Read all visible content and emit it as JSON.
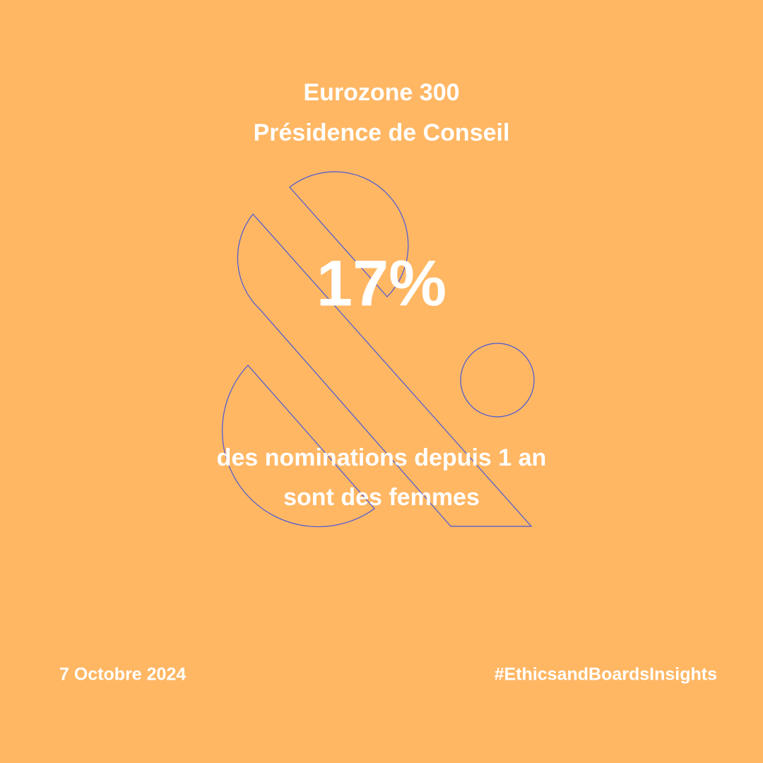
{
  "header": {
    "lines": [
      "Eurozone 300",
      "Présidence de Conseil"
    ]
  },
  "stat": {
    "value": "17%",
    "lines": [
      "des nominations depuis 1 an",
      "sont des femmes"
    ]
  },
  "footer": {
    "date": "7 Octobre 2024",
    "hashtag": "#EthicsandBoardsInsights"
  }
}
